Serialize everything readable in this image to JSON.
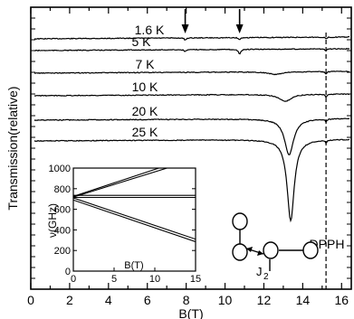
{
  "chart_data": [
    {
      "type": "line",
      "xlabel": "B(T)",
      "ylabel": "Transmission(relative)",
      "xlim": [
        0,
        16.5
      ],
      "x_ticks": [
        "0",
        "2",
        "4",
        "6",
        "8",
        "10",
        "12",
        "14",
        "16"
      ],
      "series": [
        {
          "name": "1.6 K",
          "offset": 0,
          "dips": [
            {
              "b": 7.95,
              "depth": 2.5,
              "w": 0.05
            },
            {
              "b": 10.75,
              "depth": 2.5,
              "w": 0.05
            },
            {
              "b": 15.2,
              "depth": 2,
              "w": 0.05
            }
          ]
        },
        {
          "name": "5 K",
          "offset": 13,
          "dips": [
            {
              "b": 7.95,
              "depth": 2,
              "w": 0.06
            },
            {
              "b": 10.75,
              "depth": 5,
              "w": 0.07
            },
            {
              "b": 15.2,
              "depth": 2.5,
              "w": 0.05
            }
          ]
        },
        {
          "name": "7 K",
          "offset": 38,
          "dips": [
            {
              "b": 12.6,
              "depth": 3,
              "w": 0.4
            },
            {
              "b": 15.2,
              "depth": 3,
              "w": 0.05
            }
          ]
        },
        {
          "name": "10 K",
          "offset": 63,
          "dips": [
            {
              "b": 13.1,
              "depth": 8,
              "w": 0.35
            },
            {
              "b": 15.2,
              "depth": 3,
              "w": 0.05
            }
          ]
        },
        {
          "name": "20 K",
          "offset": 90,
          "dips": [
            {
              "b": 13.3,
              "depth": 40,
              "w": 0.28
            },
            {
              "b": 15.2,
              "depth": 3,
              "w": 0.05
            }
          ]
        },
        {
          "name": "25 K",
          "offset": 113,
          "dips": [
            {
              "b": 13.38,
              "depth": 90,
              "w": 0.22
            },
            {
              "b": 15.2,
              "depth": 3,
              "w": 0.05
            }
          ]
        }
      ],
      "annotations": {
        "arrows_at": [
          7.95,
          10.75
        ],
        "dpph_label": "DPPH",
        "dpph_b": 15.2
      }
    },
    {
      "type": "line",
      "xlabel": "B(T)",
      "ylabel": "ν(GHz)",
      "xlim": [
        0,
        15
      ],
      "ylim": [
        0,
        1000
      ],
      "x_ticks": [
        "0",
        "5",
        "10",
        "15"
      ],
      "y_ticks": [
        "0",
        "200",
        "400",
        "600",
        "800",
        "1000"
      ],
      "lines": [
        {
          "x": [
            0,
            10.5
          ],
          "y": [
            725,
            1000
          ]
        },
        {
          "x": [
            0,
            11.5
          ],
          "y": [
            718,
            1000
          ]
        },
        {
          "x": [
            0,
            15
          ],
          "y": [
            735,
            735
          ]
        },
        {
          "x": [
            0,
            15
          ],
          "y": [
            715,
            715
          ]
        },
        {
          "x": [
            0,
            15
          ],
          "y": [
            710,
            310
          ]
        },
        {
          "x": [
            0,
            15
          ],
          "y": [
            690,
            285
          ]
        }
      ]
    }
  ],
  "diagram": {
    "coupling_label": "J",
    "coupling_sub": "2"
  }
}
